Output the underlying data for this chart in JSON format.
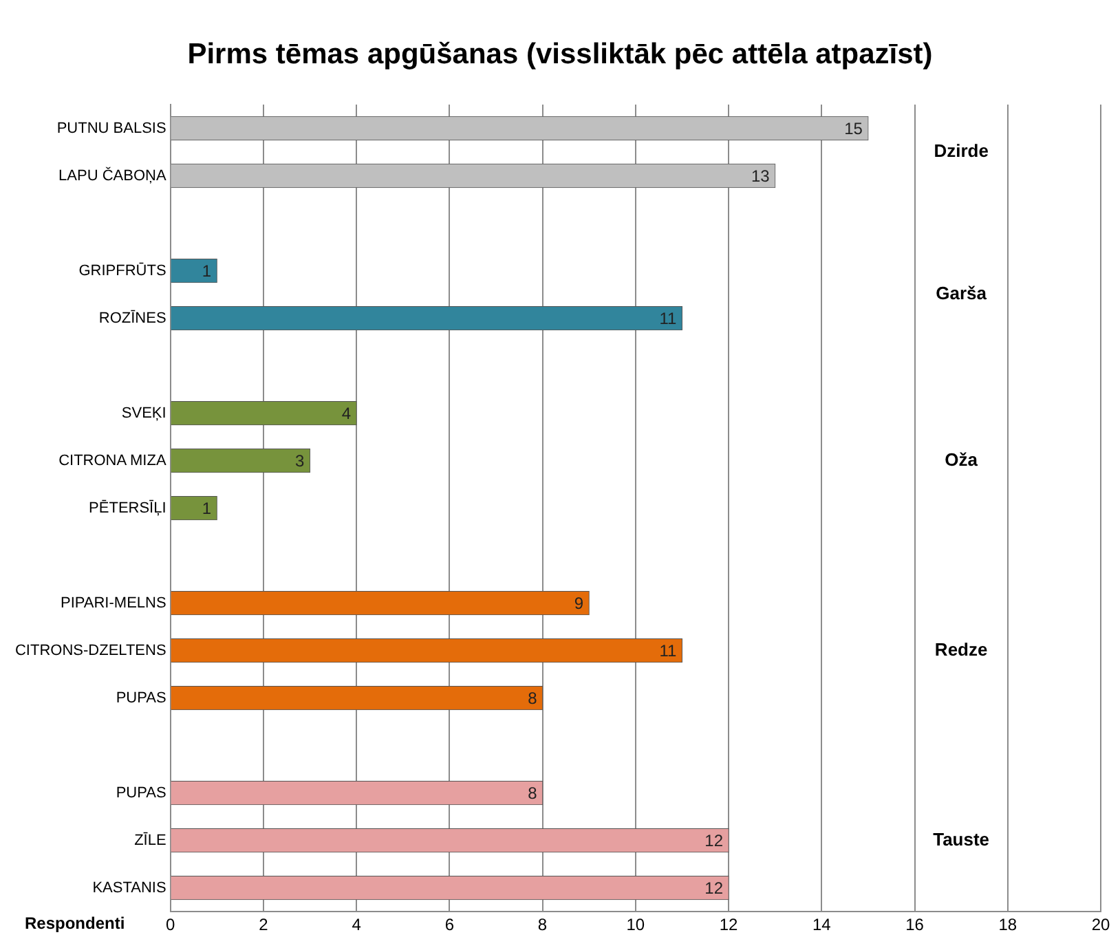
{
  "chart_data": {
    "type": "bar",
    "orientation": "horizontal",
    "title": "Pirms tēmas apgūšanas (vissliktāk pēc attēla atpazīst)",
    "xlabel": "Respondenti",
    "categories": [
      "PUTNU BALSIS",
      "LAPU ČABOŅA",
      null,
      "GRIPFRŪTS",
      "ROZĪNES",
      null,
      "SVEĶI",
      "CITRONA MIZA",
      "PĒTERSĪĻI",
      null,
      "PIPARI-MELNS",
      "CITRONS-DZELTENS",
      "PUPAS",
      null,
      "PUPAS",
      "ZĪLE",
      "KASTANIS"
    ],
    "values": [
      15,
      13,
      null,
      1,
      11,
      null,
      4,
      3,
      1,
      null,
      9,
      11,
      8,
      null,
      8,
      12,
      12
    ],
    "colors": [
      "#bfbfbf",
      "#bfbfbf",
      null,
      "#31859c",
      "#31859c",
      null,
      "#77933c",
      "#77933c",
      "#77933c",
      null,
      "#e46c0a",
      "#e46c0a",
      "#e46c0a",
      null,
      "#e6a0a0",
      "#e6a0a0",
      "#e6a0a0"
    ],
    "xlim": [
      0,
      20
    ],
    "xticks": [
      0,
      2,
      4,
      6,
      8,
      10,
      12,
      14,
      16,
      18,
      20
    ],
    "grid": "x",
    "data_labels": true,
    "legend": false,
    "annotations": [
      "Dzirde",
      "Garša",
      "Oža",
      "Redze",
      "Tauste"
    ]
  }
}
